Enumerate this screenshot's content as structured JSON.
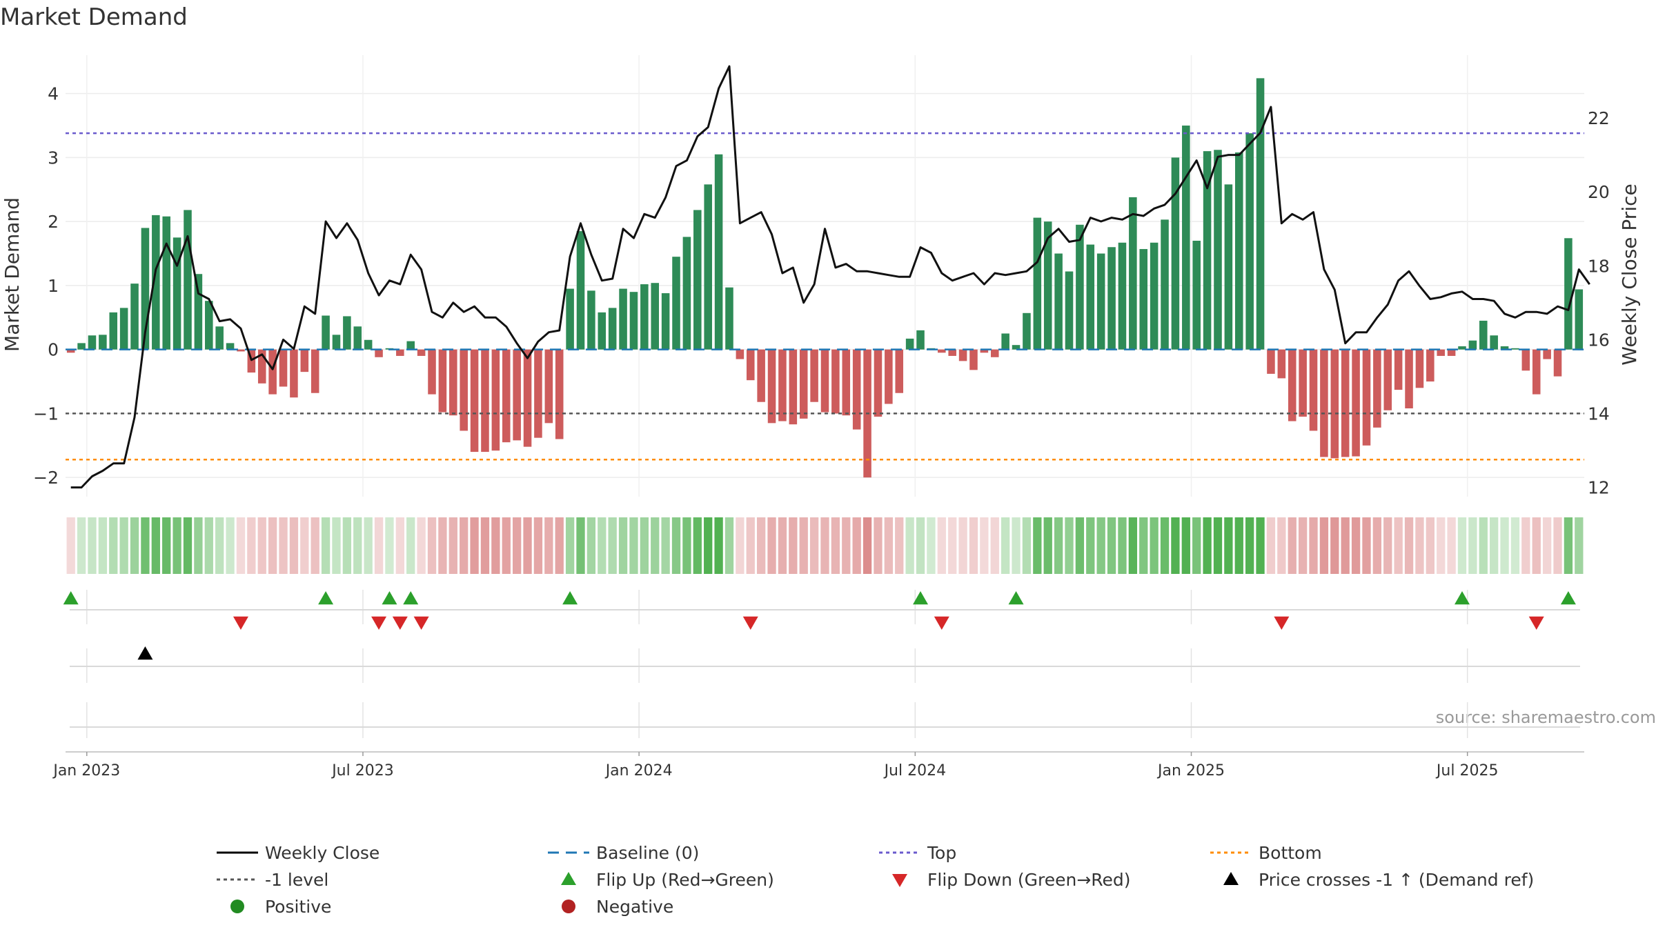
{
  "chart_data": {
    "type": "bar",
    "title": "Market Demand",
    "ylabel_left": "Market Demand",
    "ylabel_right": "Weekly Close Price",
    "source": "source: sharemaestro.com",
    "x_ticks": [
      "Jan 2023",
      "Jul 2023",
      "Jan 2024",
      "Jul 2024",
      "Jan 2025",
      "Jul 2025"
    ],
    "x_tick_weeks": [
      1.5,
      27.5,
      53.5,
      79.5,
      105.5,
      131.5
    ],
    "y_left_ticks": [
      -2,
      -1,
      0,
      1,
      2,
      3,
      4
    ],
    "y_left_tick_labels": [
      "−2",
      "−1",
      "0",
      "1",
      "2",
      "3",
      "4"
    ],
    "y_left_lim": [
      -2.3,
      4.6
    ],
    "y_right_ticks": [
      12,
      14,
      16,
      18,
      20,
      22
    ],
    "y_right_lim": [
      11.75,
      23.7
    ],
    "top_level": 3.38,
    "minus_one_level": -1,
    "bottom_level": -1.72,
    "colors": {
      "positive_bar": "#2e8b57",
      "negative_bar": "#cd5c5c",
      "price_line": "#111111",
      "baseline": "#1f77b4",
      "top": "#6a5acd",
      "minus_one": "#555555",
      "bottom": "#ff8c00",
      "flip_up": "#2ca02c",
      "flip_down": "#d62728",
      "price_cross": "#000000",
      "positive_dot": "#228b22",
      "negative_dot": "#b22222"
    },
    "demand": [
      -0.05,
      0.1,
      0.22,
      0.23,
      0.58,
      0.65,
      1.03,
      1.9,
      2.1,
      2.08,
      1.75,
      2.18,
      1.18,
      0.76,
      0.36,
      0.1,
      -0.03,
      -0.36,
      -0.53,
      -0.7,
      -0.58,
      -0.75,
      -0.35,
      -0.68,
      0.53,
      0.23,
      0.52,
      0.36,
      0.15,
      -0.12,
      0.02,
      -0.1,
      0.13,
      -0.1,
      -0.7,
      -0.98,
      -1.03,
      -1.27,
      -1.6,
      -1.6,
      -1.58,
      -1.45,
      -1.42,
      -1.52,
      -1.38,
      -1.15,
      -1.4,
      0.95,
      1.85,
      0.92,
      0.58,
      0.65,
      0.95,
      0.9,
      1.02,
      1.04,
      0.88,
      1.45,
      1.76,
      2.18,
      2.58,
      3.05,
      0.97,
      -0.15,
      -0.48,
      -0.82,
      -1.15,
      -1.12,
      -1.17,
      -1.08,
      -0.82,
      -0.98,
      -1.0,
      -1.03,
      -1.25,
      -2.0,
      -1.05,
      -0.85,
      -0.68,
      0.17,
      0.3,
      0.02,
      -0.05,
      -0.1,
      -0.18,
      -0.32,
      -0.05,
      -0.12,
      0.25,
      0.07,
      0.57,
      2.06,
      2.0,
      1.5,
      1.22,
      1.95,
      1.64,
      1.5,
      1.6,
      1.67,
      2.38,
      1.57,
      1.67,
      2.03,
      3.0,
      3.5,
      1.7,
      3.1,
      3.12,
      2.58,
      3.08,
      3.38,
      4.24,
      -0.38,
      -0.45,
      -1.12,
      -1.05,
      -1.27,
      -1.68,
      -1.7,
      -1.68,
      -1.67,
      -1.5,
      -1.22,
      -0.95,
      -0.63,
      -0.92,
      -0.6,
      -0.5,
      -0.1,
      -0.1,
      0.05,
      0.14,
      0.45,
      0.22,
      0.05,
      0.02,
      -0.33,
      -0.7,
      -0.15,
      -0.42,
      1.74,
      0.94
    ],
    "price": [
      12.0,
      12.0,
      12.3,
      12.45,
      12.65,
      12.65,
      13.9,
      16.2,
      17.9,
      18.6,
      18.0,
      18.8,
      17.25,
      17.1,
      16.5,
      16.55,
      16.3,
      15.45,
      15.6,
      15.2,
      16.0,
      15.75,
      16.9,
      16.7,
      19.2,
      18.75,
      19.15,
      18.7,
      17.8,
      17.2,
      17.6,
      17.5,
      18.3,
      17.9,
      16.75,
      16.6,
      17.0,
      16.75,
      16.9,
      16.6,
      16.6,
      16.35,
      15.9,
      15.5,
      15.95,
      16.2,
      16.25,
      18.25,
      19.15,
      18.3,
      17.6,
      17.65,
      19.0,
      18.75,
      19.4,
      19.3,
      19.85,
      20.7,
      20.85,
      21.5,
      21.75,
      22.8,
      23.4,
      19.15,
      19.3,
      19.45,
      18.85,
      17.8,
      17.95,
      17.0,
      17.5,
      19.0,
      17.95,
      18.05,
      17.85,
      17.85,
      17.8,
      17.75,
      17.7,
      17.7,
      18.5,
      18.35,
      17.8,
      17.6,
      17.7,
      17.8,
      17.5,
      17.8,
      17.75,
      17.8,
      17.85,
      18.1,
      18.75,
      19.0,
      18.65,
      18.7,
      19.3,
      19.2,
      19.3,
      19.25,
      19.4,
      19.35,
      19.55,
      19.65,
      19.95,
      20.4,
      20.85,
      20.1,
      20.95,
      21.0,
      21.0,
      21.3,
      21.6,
      22.3,
      19.15,
      19.4,
      19.25,
      19.45,
      17.9,
      17.35,
      15.9,
      16.2,
      16.2,
      16.6,
      16.95,
      17.6,
      17.85,
      17.45,
      17.1,
      17.15,
      17.25,
      17.3,
      17.1,
      17.1,
      17.05,
      16.7,
      16.6,
      16.75,
      16.75,
      16.7,
      16.9,
      16.8,
      17.9,
      17.5
    ],
    "flip_up_weeks": [
      0,
      24,
      30,
      32,
      47,
      80,
      89,
      131,
      141
    ],
    "flip_down_weeks": [
      16,
      29,
      31,
      33,
      64,
      82,
      114,
      138
    ],
    "price_cross_weeks": [
      7
    ],
    "legend": [
      {
        "label": "Weekly Close",
        "kind": "line"
      },
      {
        "label": "Baseline (0)",
        "kind": "dashed-line"
      },
      {
        "label": "Top",
        "kind": "dotted-line"
      },
      {
        "label": "Bottom",
        "kind": "dotted-line"
      },
      {
        "label": "-1 level",
        "kind": "dotted-line"
      },
      {
        "label": "Flip Up (Red→Green)",
        "kind": "triangle-up"
      },
      {
        "label": "Flip Down (Green→Red)",
        "kind": "triangle-down"
      },
      {
        "label": "Price crosses -1 ↑ (Demand ref)",
        "kind": "triangle-up"
      },
      {
        "label": "Positive",
        "kind": "dot"
      },
      {
        "label": "Negative",
        "kind": "dot"
      }
    ],
    "legend_colors": [
      "#000000",
      "#1f77b4",
      "#6a5acd",
      "#ff8c00",
      "#555555",
      "#2ca02c",
      "#d62728",
      "#000000",
      "#228b22",
      "#b22222"
    ]
  }
}
